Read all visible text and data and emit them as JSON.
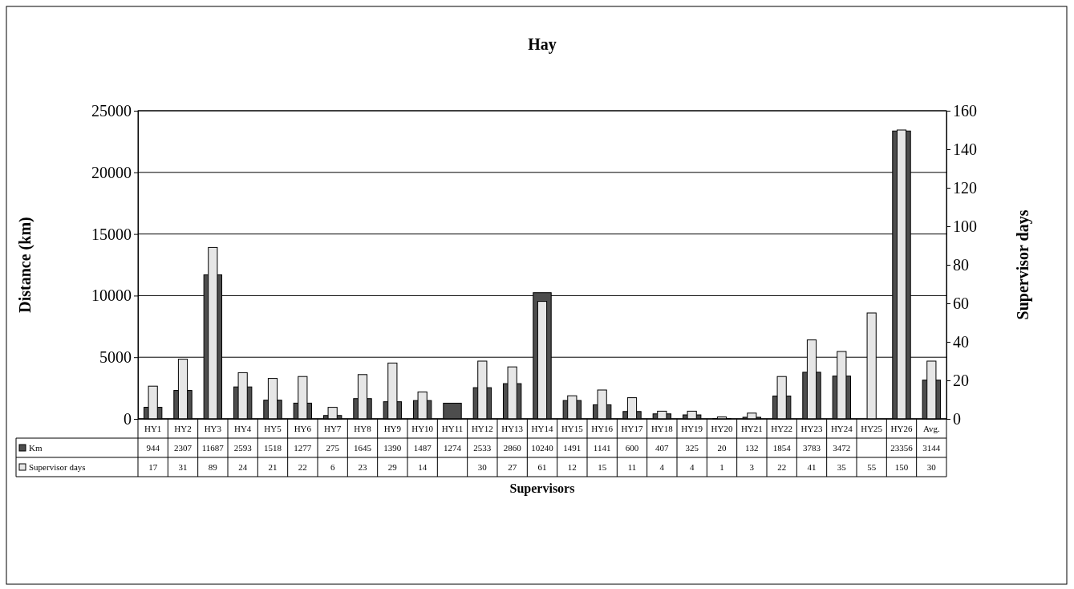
{
  "chart_data": {
    "type": "bar",
    "title": "Hay",
    "xlabel": "Supervisors",
    "ylabel": "Distance (km)",
    "y2label": "Supervisor days",
    "categories": [
      "HY1",
      "HY2",
      "HY3",
      "HY4",
      "HY5",
      "HY6",
      "HY7",
      "HY8",
      "HY9",
      "HY10",
      "HY11",
      "HY12",
      "HY13",
      "HY14",
      "HY15",
      "HY16",
      "HY17",
      "HY18",
      "HY19",
      "HY20",
      "HY21",
      "HY22",
      "HY23",
      "HY24",
      "HY25",
      "HY26",
      "Avg."
    ],
    "series": [
      {
        "name": "Km",
        "color": "#4d4d4d",
        "values": [
          944,
          2307,
          11687,
          2593,
          1518,
          1277,
          275,
          1645,
          1390,
          1487,
          1274,
          2533,
          2860,
          10240,
          1491,
          1141,
          600,
          407,
          325,
          20,
          132,
          1854,
          3783,
          3472,
          null,
          23356,
          3144
        ]
      },
      {
        "name": "Supervisor days",
        "color": "#e6e6e6",
        "axis": "y2",
        "values": [
          17,
          31,
          89,
          24,
          21,
          22,
          6,
          23,
          29,
          14,
          null,
          30,
          27,
          61,
          12,
          15,
          11,
          4,
          4,
          1,
          3,
          22,
          41,
          35,
          55,
          150,
          30
        ]
      }
    ],
    "ylim": [
      0,
      25000
    ],
    "yticks": [
      0,
      5000,
      10000,
      15000,
      20000,
      25000
    ],
    "y2lim": [
      0,
      160
    ],
    "y2ticks": [
      0,
      20,
      40,
      60,
      80,
      100,
      120,
      140,
      160
    ],
    "grid": "y",
    "legend": "bottom left",
    "data_labels": true
  }
}
